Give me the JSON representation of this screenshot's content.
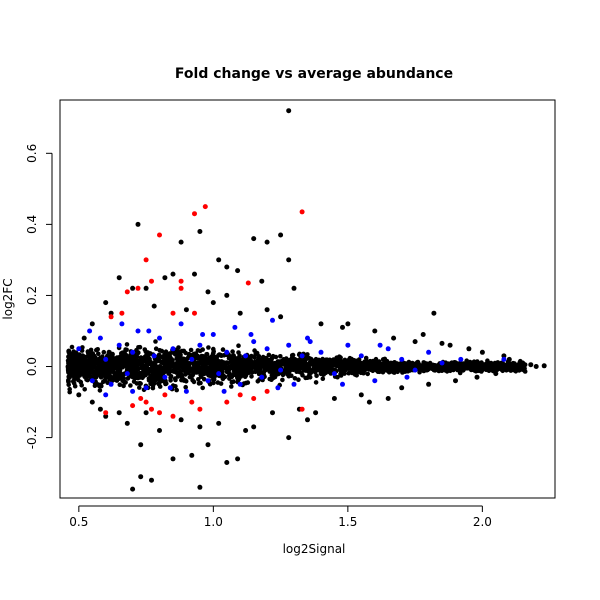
{
  "chart_data": {
    "type": "scatter",
    "title": "Fold change vs average abundance",
    "xlabel": "log2Signal",
    "ylabel": "log2FC",
    "xlim": [
      0.43,
      2.27
    ],
    "ylim": [
      -0.37,
      0.75
    ],
    "x_ticks": [
      0.5,
      1.0,
      1.5,
      2.0
    ],
    "x_tick_labels": [
      "0.5",
      "1.0",
      "1.5",
      "2.0"
    ],
    "y_ticks": [
      -0.2,
      0.0,
      0.2,
      0.4,
      0.6
    ],
    "y_tick_labels": [
      "-0.2",
      "0.0",
      "0.2",
      "0.4",
      "0.6"
    ],
    "grid": false,
    "legend": "none",
    "series": [
      {
        "color": "#000000",
        "points": [
          [
            1.28,
            0.72
          ],
          [
            0.72,
            0.4
          ],
          [
            0.95,
            0.38
          ],
          [
            1.25,
            0.37
          ],
          [
            1.15,
            0.36
          ],
          [
            1.2,
            0.35
          ],
          [
            0.88,
            0.35
          ],
          [
            1.02,
            0.3
          ],
          [
            1.05,
            0.28
          ],
          [
            1.28,
            0.3
          ],
          [
            0.85,
            0.26
          ],
          [
            0.82,
            0.25
          ],
          [
            0.93,
            0.26
          ],
          [
            1.09,
            0.27
          ],
          [
            1.18,
            0.24
          ],
          [
            0.65,
            0.25
          ],
          [
            0.7,
            0.22
          ],
          [
            0.75,
            0.22
          ],
          [
            1.3,
            0.22
          ],
          [
            1.82,
            0.15
          ],
          [
            1.78,
            0.09
          ],
          [
            1.67,
            0.08
          ],
          [
            1.05,
            0.2
          ],
          [
            0.98,
            0.21
          ],
          [
            0.6,
            0.18
          ],
          [
            0.92,
            -0.25
          ],
          [
            0.95,
            -0.34
          ],
          [
            0.7,
            -0.345
          ],
          [
            0.73,
            -0.31
          ],
          [
            0.77,
            -0.32
          ],
          [
            1.05,
            -0.27
          ],
          [
            0.98,
            -0.22
          ],
          [
            1.09,
            -0.26
          ],
          [
            0.85,
            -0.26
          ],
          [
            1.28,
            -0.2
          ],
          [
            1.12,
            -0.18
          ],
          [
            0.73,
            -0.22
          ],
          [
            0.8,
            -0.18
          ],
          [
            0.95,
            -0.17
          ],
          [
            1.15,
            -0.17
          ],
          [
            1.35,
            -0.15
          ],
          [
            0.6,
            -0.14
          ],
          [
            0.65,
            -0.13
          ],
          [
            0.55,
            -0.1
          ],
          [
            0.5,
            -0.08
          ],
          [
            1.9,
            -0.04
          ],
          [
            2.05,
            -0.02
          ],
          [
            2.2,
            0.0
          ],
          [
            2.23,
            0.002
          ],
          [
            2.1,
            0.02
          ],
          [
            2.15,
            0.01
          ],
          [
            2.0,
            0.04
          ],
          [
            1.95,
            0.05
          ],
          [
            1.88,
            0.06
          ],
          [
            1.75,
            0.07
          ],
          [
            1.6,
            0.1
          ],
          [
            1.5,
            0.12
          ],
          [
            1.4,
            0.12
          ],
          [
            1.45,
            -0.09
          ],
          [
            1.55,
            -0.08
          ],
          [
            1.7,
            -0.06
          ],
          [
            1.38,
            -0.13
          ],
          [
            1.65,
            -0.09
          ],
          [
            0.48,
            0.02
          ],
          [
            0.47,
            -0.02
          ],
          [
            0.46,
            0.0
          ],
          [
            0.52,
            0.08
          ],
          [
            0.55,
            0.12
          ],
          [
            0.62,
            0.15
          ],
          [
            0.78,
            0.17
          ],
          [
            0.9,
            0.16
          ],
          [
            1.0,
            0.18
          ],
          [
            1.1,
            0.15
          ],
          [
            1.2,
            0.16
          ],
          [
            1.25,
            0.14
          ],
          [
            0.68,
            -0.16
          ],
          [
            0.88,
            -0.15
          ],
          [
            1.02,
            -0.16
          ],
          [
            1.22,
            -0.13
          ],
          [
            0.58,
            -0.12
          ],
          [
            0.75,
            -0.13
          ],
          [
            1.32,
            -0.12
          ],
          [
            1.48,
            0.11
          ],
          [
            1.58,
            -0.1
          ],
          [
            1.8,
            -0.05
          ],
          [
            1.85,
            0.065
          ],
          [
            2.08,
            0.03
          ],
          [
            2.12,
            -0.01
          ],
          [
            1.98,
            -0.03
          ],
          [
            2.18,
            0.005
          ]
        ]
      },
      {
        "color": "#ff0000",
        "points": [
          [
            0.97,
            0.45
          ],
          [
            0.93,
            0.43
          ],
          [
            1.33,
            0.435
          ],
          [
            0.8,
            0.37
          ],
          [
            0.75,
            0.3
          ],
          [
            0.77,
            0.24
          ],
          [
            0.88,
            0.24
          ],
          [
            0.72,
            0.22
          ],
          [
            0.68,
            0.21
          ],
          [
            0.88,
            0.22
          ],
          [
            1.13,
            0.235
          ],
          [
            0.85,
            0.15
          ],
          [
            0.93,
            0.15
          ],
          [
            0.62,
            0.14
          ],
          [
            0.66,
            0.15
          ],
          [
            0.73,
            -0.09
          ],
          [
            0.6,
            -0.13
          ],
          [
            0.75,
            -0.1
          ],
          [
            0.77,
            -0.12
          ],
          [
            0.8,
            -0.13
          ],
          [
            0.85,
            -0.14
          ],
          [
            0.92,
            -0.1
          ],
          [
            0.95,
            -0.12
          ],
          [
            1.1,
            -0.08
          ],
          [
            1.15,
            -0.09
          ],
          [
            1.33,
            -0.12
          ],
          [
            1.2,
            -0.07
          ],
          [
            0.82,
            -0.08
          ],
          [
            1.05,
            -0.1
          ],
          [
            0.7,
            -0.11
          ]
        ]
      },
      {
        "color": "#0000ff",
        "points": [
          [
            0.5,
            0.05
          ],
          [
            0.55,
            -0.04
          ],
          [
            0.58,
            0.08
          ],
          [
            0.6,
            0.02
          ],
          [
            0.62,
            -0.05
          ],
          [
            0.65,
            0.06
          ],
          [
            0.68,
            -0.02
          ],
          [
            0.7,
            0.04
          ],
          [
            0.72,
            0.1
          ],
          [
            0.75,
            -0.06
          ],
          [
            0.78,
            0.03
          ],
          [
            0.8,
            0.08
          ],
          [
            0.82,
            -0.03
          ],
          [
            0.85,
            0.05
          ],
          [
            0.88,
            0.12
          ],
          [
            0.9,
            -0.07
          ],
          [
            0.92,
            0.02
          ],
          [
            0.95,
            0.06
          ],
          [
            0.98,
            -0.04
          ],
          [
            1.0,
            0.09
          ],
          [
            1.02,
            -0.02
          ],
          [
            1.05,
            0.04
          ],
          [
            1.08,
            0.11
          ],
          [
            1.1,
            -0.05
          ],
          [
            1.12,
            0.03
          ],
          [
            1.15,
            0.07
          ],
          [
            1.18,
            -0.03
          ],
          [
            1.2,
            0.05
          ],
          [
            1.22,
            0.13
          ],
          [
            1.25,
            -0.01
          ],
          [
            1.28,
            0.06
          ],
          [
            1.3,
            -0.05
          ],
          [
            1.33,
            0.03
          ],
          [
            1.35,
            0.08
          ],
          [
            1.4,
            0.04
          ],
          [
            1.45,
            -0.02
          ],
          [
            1.5,
            0.06
          ],
          [
            1.55,
            0.03
          ],
          [
            1.6,
            -0.04
          ],
          [
            1.65,
            0.05
          ],
          [
            1.7,
            0.02
          ],
          [
            1.75,
            -0.01
          ],
          [
            1.8,
            0.04
          ],
          [
            1.85,
            0.01
          ],
          [
            2.08,
            0.02
          ],
          [
            0.54,
            0.1
          ],
          [
            0.6,
            -0.08
          ],
          [
            0.66,
            0.12
          ],
          [
            0.7,
            -0.07
          ],
          [
            0.76,
            0.1
          ],
          [
            0.84,
            -0.06
          ],
          [
            0.96,
            0.09
          ],
          [
            1.04,
            -0.07
          ],
          [
            1.14,
            0.09
          ],
          [
            1.24,
            -0.06
          ],
          [
            1.36,
            0.07
          ],
          [
            1.48,
            -0.05
          ],
          [
            1.62,
            0.06
          ],
          [
            1.72,
            -0.03
          ],
          [
            1.92,
            0.02
          ]
        ]
      }
    ]
  }
}
